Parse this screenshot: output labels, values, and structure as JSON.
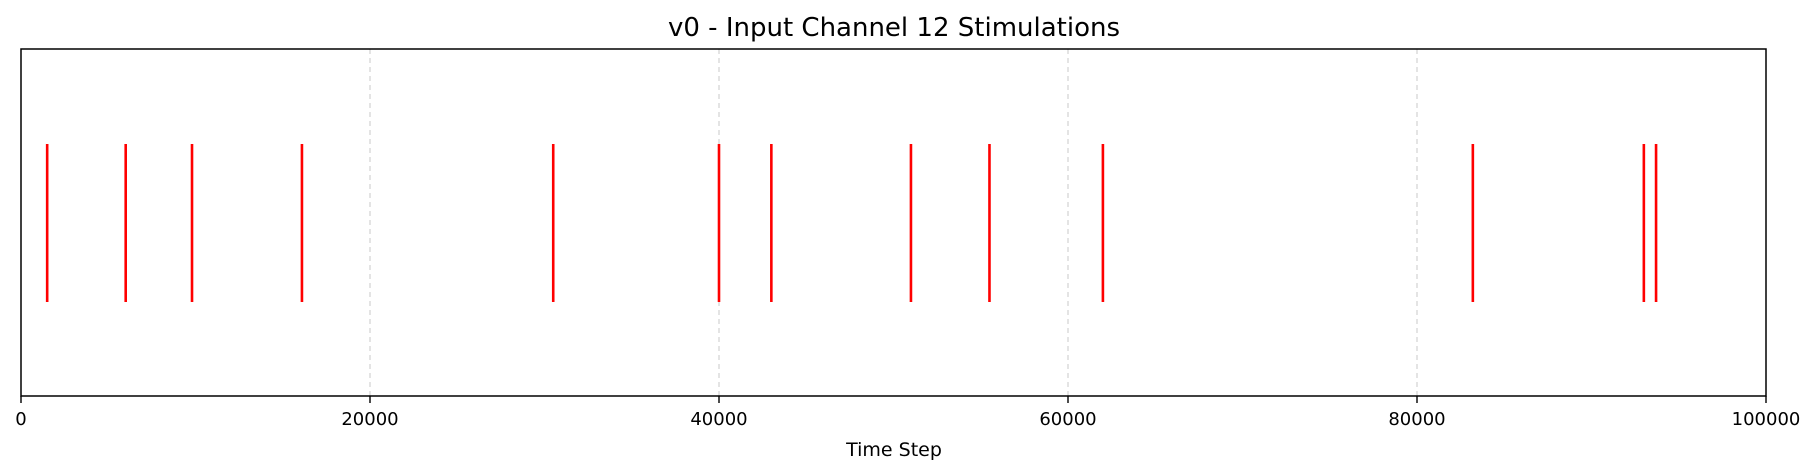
{
  "chart_data": {
    "type": "event",
    "title": "v0 - Input Channel 12 Stimulations",
    "xlabel": "Time Step",
    "ylabel": "",
    "xlim": [
      0,
      100000
    ],
    "xticks": [
      0,
      20000,
      40000,
      60000,
      80000,
      100000
    ],
    "xtick_labels": [
      "0",
      "20000",
      "40000",
      "60000",
      "80000",
      "100000"
    ],
    "events": [
      1500,
      6000,
      9800,
      16100,
      30500,
      40000,
      43000,
      51000,
      55500,
      62000,
      83200,
      93000,
      93700
    ],
    "event_color": "#ff0000",
    "grid": "x-dashed",
    "grid_color": "#d3d3d3",
    "legend": "none"
  }
}
